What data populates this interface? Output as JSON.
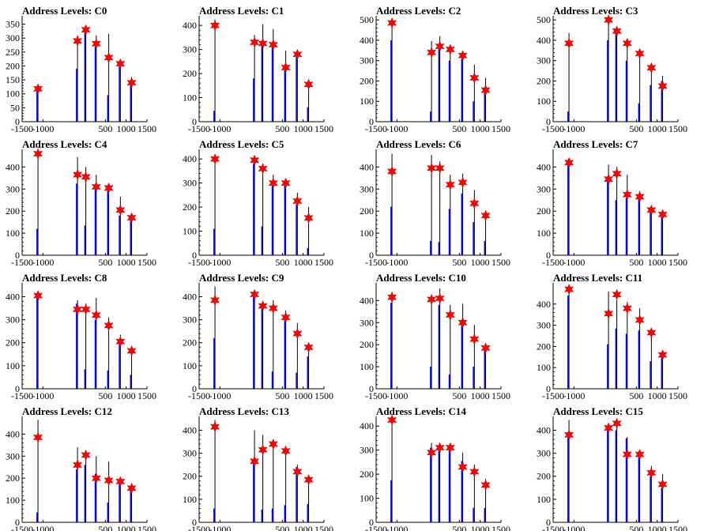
{
  "common": {
    "x_tick_labels": [
      "-1500",
      "-1000",
      "500",
      "1000",
      "1500"
    ],
    "xlim": [
      -1500,
      1500
    ]
  },
  "colors": {
    "background": "#ffffff",
    "axis": "#000000",
    "black_spike": "#000000",
    "blue_spike": "#0000ff",
    "marker": "#ff0000"
  },
  "chart_data": [
    {
      "type": "bar",
      "title": "Address Levels: C0",
      "ylim": [
        0,
        380
      ],
      "yticks": [
        0,
        50,
        100,
        150,
        200,
        250,
        300,
        350
      ],
      "groups": [
        {
          "x": -1100,
          "black": 125,
          "blue": 120,
          "marker": 118
        },
        {
          "x": -150,
          "black": 310,
          "blue": 190,
          "marker": 290
        },
        {
          "x": 50,
          "black": 335,
          "blue": 330,
          "marker": 330
        },
        {
          "x": 300,
          "black": 310,
          "blue": 270,
          "marker": 280
        },
        {
          "x": 600,
          "black": 315,
          "blue": 95,
          "marker": 230
        },
        {
          "x": 880,
          "black": 215,
          "blue": 200,
          "marker": 208
        },
        {
          "x": 1150,
          "black": 160,
          "blue": 140,
          "marker": 140
        }
      ]
    },
    {
      "type": "bar",
      "title": "Address Levels: C1",
      "ylim": [
        0,
        440
      ],
      "yticks": [
        0,
        100,
        200,
        300,
        400
      ],
      "groups": [
        {
          "x": -1100,
          "black": 425,
          "blue": 45,
          "marker": 400
        },
        {
          "x": -150,
          "black": 360,
          "blue": 180,
          "marker": 330
        },
        {
          "x": 50,
          "black": 405,
          "blue": 320,
          "marker": 325
        },
        {
          "x": 300,
          "black": 385,
          "blue": 315,
          "marker": 320
        },
        {
          "x": 600,
          "black": 295,
          "blue": 230,
          "marker": 225
        },
        {
          "x": 880,
          "black": 290,
          "blue": 270,
          "marker": 280
        },
        {
          "x": 1150,
          "black": 170,
          "blue": 60,
          "marker": 155
        }
      ]
    },
    {
      "type": "bar",
      "title": "Address Levels: C2",
      "ylim": [
        0,
        520
      ],
      "yticks": [
        0,
        100,
        200,
        300,
        400,
        500
      ],
      "groups": [
        {
          "x": -1100,
          "black": 500,
          "blue": 400,
          "marker": 485
        },
        {
          "x": -150,
          "black": 395,
          "blue": 50,
          "marker": 340
        },
        {
          "x": 50,
          "black": 420,
          "blue": 370,
          "marker": 370
        },
        {
          "x": 300,
          "black": 375,
          "blue": 300,
          "marker": 355
        },
        {
          "x": 600,
          "black": 335,
          "blue": 310,
          "marker": 325
        },
        {
          "x": 880,
          "black": 280,
          "blue": 100,
          "marker": 215
        },
        {
          "x": 1150,
          "black": 215,
          "blue": 150,
          "marker": 155
        }
      ]
    },
    {
      "type": "bar",
      "title": "Address Levels: C3",
      "ylim": [
        0,
        520
      ],
      "yticks": [
        0,
        100,
        200,
        300,
        400,
        500
      ],
      "groups": [
        {
          "x": -1100,
          "black": 435,
          "blue": 50,
          "marker": 385
        },
        {
          "x": -150,
          "black": 505,
          "blue": 400,
          "marker": 500
        },
        {
          "x": 50,
          "black": 455,
          "blue": 440,
          "marker": 445
        },
        {
          "x": 300,
          "black": 400,
          "blue": 300,
          "marker": 385
        },
        {
          "x": 600,
          "black": 345,
          "blue": 90,
          "marker": 335
        },
        {
          "x": 880,
          "black": 275,
          "blue": 180,
          "marker": 265
        },
        {
          "x": 1150,
          "black": 225,
          "blue": 200,
          "marker": 175
        }
      ]
    },
    {
      "type": "bar",
      "title": "Address Levels: C4",
      "ylim": [
        0,
        480
      ],
      "yticks": [
        0,
        100,
        200,
        300,
        400
      ],
      "groups": [
        {
          "x": -1100,
          "black": 460,
          "blue": 120,
          "marker": 460
        },
        {
          "x": -150,
          "black": 445,
          "blue": 325,
          "marker": 365
        },
        {
          "x": 50,
          "black": 400,
          "blue": 135,
          "marker": 355
        },
        {
          "x": 300,
          "black": 365,
          "blue": 300,
          "marker": 310
        },
        {
          "x": 600,
          "black": 320,
          "blue": 300,
          "marker": 305
        },
        {
          "x": 880,
          "black": 265,
          "blue": 180,
          "marker": 205
        },
        {
          "x": 1150,
          "black": 185,
          "blue": 160,
          "marker": 170
        }
      ]
    },
    {
      "type": "bar",
      "title": "Address Levels: C5",
      "ylim": [
        0,
        440
      ],
      "yticks": [
        0,
        100,
        200,
        300,
        400
      ],
      "groups": [
        {
          "x": -1100,
          "black": 410,
          "blue": 110,
          "marker": 400
        },
        {
          "x": -150,
          "black": 410,
          "blue": 380,
          "marker": 395
        },
        {
          "x": 50,
          "black": 380,
          "blue": 120,
          "marker": 360
        },
        {
          "x": 300,
          "black": 335,
          "blue": 290,
          "marker": 300
        },
        {
          "x": 600,
          "black": 310,
          "blue": 295,
          "marker": 300
        },
        {
          "x": 880,
          "black": 260,
          "blue": 210,
          "marker": 225
        },
        {
          "x": 1150,
          "black": 200,
          "blue": 30,
          "marker": 155
        }
      ]
    },
    {
      "type": "bar",
      "title": "Address Levels: C6",
      "ylim": [
        0,
        480
      ],
      "yticks": [
        0,
        100,
        200,
        300,
        400
      ],
      "groups": [
        {
          "x": -1100,
          "black": 460,
          "blue": 220,
          "marker": 380
        },
        {
          "x": -150,
          "black": 455,
          "blue": 65,
          "marker": 395
        },
        {
          "x": 50,
          "black": 425,
          "blue": 60,
          "marker": 395
        },
        {
          "x": 300,
          "black": 365,
          "blue": 210,
          "marker": 320
        },
        {
          "x": 600,
          "black": 370,
          "blue": 280,
          "marker": 330
        },
        {
          "x": 880,
          "black": 295,
          "blue": 150,
          "marker": 235
        },
        {
          "x": 1150,
          "black": 200,
          "blue": 65,
          "marker": 180
        }
      ]
    },
    {
      "type": "bar",
      "title": "Address Levels: C7",
      "ylim": [
        0,
        480
      ],
      "yticks": [
        0,
        100,
        200,
        300,
        400
      ],
      "groups": [
        {
          "x": -1100,
          "black": 440,
          "blue": 410,
          "marker": 420
        },
        {
          "x": -150,
          "black": 410,
          "blue": 340,
          "marker": 345
        },
        {
          "x": 50,
          "black": 400,
          "blue": 250,
          "marker": 370
        },
        {
          "x": 300,
          "black": 365,
          "blue": 260,
          "marker": 275
        },
        {
          "x": 600,
          "black": 290,
          "blue": 270,
          "marker": 265
        },
        {
          "x": 880,
          "black": 220,
          "blue": 200,
          "marker": 205
        },
        {
          "x": 1150,
          "black": 190,
          "blue": 180,
          "marker": 185
        }
      ]
    },
    {
      "type": "bar",
      "title": "Address Levels: C8",
      "ylim": [
        0,
        460
      ],
      "yticks": [
        0,
        100,
        200,
        300,
        400
      ],
      "groups": [
        {
          "x": -1100,
          "black": 420,
          "blue": 410,
          "marker": 405
        },
        {
          "x": -150,
          "black": 385,
          "blue": 370,
          "marker": 345
        },
        {
          "x": 50,
          "black": 370,
          "blue": 85,
          "marker": 345
        },
        {
          "x": 300,
          "black": 395,
          "blue": 300,
          "marker": 320
        },
        {
          "x": 600,
          "black": 310,
          "blue": 80,
          "marker": 275
        },
        {
          "x": 880,
          "black": 235,
          "blue": 210,
          "marker": 205
        },
        {
          "x": 1150,
          "black": 180,
          "blue": 60,
          "marker": 165
        }
      ]
    },
    {
      "type": "bar",
      "title": "Address Levels: C9",
      "ylim": [
        0,
        460
      ],
      "yticks": [
        0,
        100,
        200,
        300,
        400
      ],
      "groups": [
        {
          "x": -1100,
          "black": 445,
          "blue": 220,
          "marker": 385
        },
        {
          "x": -150,
          "black": 420,
          "blue": 400,
          "marker": 410
        },
        {
          "x": 50,
          "black": 380,
          "blue": 370,
          "marker": 360
        },
        {
          "x": 300,
          "black": 385,
          "blue": 75,
          "marker": 350
        },
        {
          "x": 600,
          "black": 340,
          "blue": 300,
          "marker": 310
        },
        {
          "x": 880,
          "black": 285,
          "blue": 70,
          "marker": 240
        },
        {
          "x": 1150,
          "black": 195,
          "blue": 140,
          "marker": 180
        }
      ]
    },
    {
      "type": "bar",
      "title": "Address Levels: C10",
      "ylim": [
        0,
        480
      ],
      "yticks": [
        0,
        100,
        200,
        300,
        400
      ],
      "groups": [
        {
          "x": -1100,
          "black": 440,
          "blue": 390,
          "marker": 415
        },
        {
          "x": -150,
          "black": 410,
          "blue": 100,
          "marker": 405
        },
        {
          "x": 50,
          "black": 455,
          "blue": 380,
          "marker": 410
        },
        {
          "x": 300,
          "black": 380,
          "blue": 65,
          "marker": 335
        },
        {
          "x": 600,
          "black": 385,
          "blue": 310,
          "marker": 300
        },
        {
          "x": 880,
          "black": 290,
          "blue": 100,
          "marker": 225
        },
        {
          "x": 1150,
          "black": 190,
          "blue": 180,
          "marker": 185
        }
      ]
    },
    {
      "type": "bar",
      "title": "Address Levels: C11",
      "ylim": [
        0,
        500
      ],
      "yticks": [
        0,
        100,
        200,
        300,
        400
      ],
      "groups": [
        {
          "x": -1100,
          "black": 475,
          "blue": 440,
          "marker": 470
        },
        {
          "x": -150,
          "black": 460,
          "blue": 210,
          "marker": 355
        },
        {
          "x": 50,
          "black": 420,
          "blue": 285,
          "marker": 445
        },
        {
          "x": 300,
          "black": 410,
          "blue": 260,
          "marker": 380
        },
        {
          "x": 600,
          "black": 380,
          "blue": 275,
          "marker": 325
        },
        {
          "x": 880,
          "black": 250,
          "blue": 130,
          "marker": 265
        },
        {
          "x": 1150,
          "black": 175,
          "blue": 160,
          "marker": 160
        }
      ]
    },
    {
      "type": "bar",
      "title": "Address Levels: C12",
      "ylim": [
        0,
        480
      ],
      "yticks": [
        0,
        100,
        200,
        300,
        400
      ],
      "groups": [
        {
          "x": -1100,
          "black": 465,
          "blue": 45,
          "marker": 385
        },
        {
          "x": -150,
          "black": 340,
          "blue": 240,
          "marker": 260
        },
        {
          "x": 50,
          "black": 300,
          "blue": 260,
          "marker": 305
        },
        {
          "x": 300,
          "black": 300,
          "blue": 220,
          "marker": 200
        },
        {
          "x": 600,
          "black": 275,
          "blue": 90,
          "marker": 190
        },
        {
          "x": 880,
          "black": 200,
          "blue": 190,
          "marker": 185
        },
        {
          "x": 1150,
          "black": 170,
          "blue": 160,
          "marker": 155
        }
      ]
    },
    {
      "type": "bar",
      "title": "Address Levels: C13",
      "ylim": [
        0,
        460
      ],
      "yticks": [
        0,
        100,
        200,
        300,
        400
      ],
      "groups": [
        {
          "x": -1100,
          "black": 445,
          "blue": 60,
          "marker": 415
        },
        {
          "x": -150,
          "black": 400,
          "blue": 265,
          "marker": 265
        },
        {
          "x": 50,
          "black": 380,
          "blue": 55,
          "marker": 315
        },
        {
          "x": 300,
          "black": 340,
          "blue": 60,
          "marker": 340
        },
        {
          "x": 600,
          "black": 310,
          "blue": 75,
          "marker": 310
        },
        {
          "x": 880,
          "black": 250,
          "blue": 240,
          "marker": 220
        },
        {
          "x": 1150,
          "black": 185,
          "blue": 80,
          "marker": 185
        }
      ]
    },
    {
      "type": "bar",
      "title": "Address Levels: C14",
      "ylim": [
        0,
        440
      ],
      "yticks": [
        0,
        100,
        200,
        300,
        400
      ],
      "groups": [
        {
          "x": -1100,
          "black": 430,
          "blue": 175,
          "marker": 425
        },
        {
          "x": -150,
          "black": 330,
          "blue": 310,
          "marker": 290
        },
        {
          "x": 50,
          "black": 325,
          "blue": 315,
          "marker": 310
        },
        {
          "x": 300,
          "black": 315,
          "blue": 300,
          "marker": 310
        },
        {
          "x": 600,
          "black": 290,
          "blue": 255,
          "marker": 230
        },
        {
          "x": 880,
          "black": 240,
          "blue": 60,
          "marker": 210
        },
        {
          "x": 1150,
          "black": 180,
          "blue": 60,
          "marker": 155
        }
      ]
    },
    {
      "type": "bar",
      "title": "Address Levels: C15",
      "ylim": [
        0,
        460
      ],
      "yticks": [
        0,
        100,
        200,
        300,
        400
      ],
      "groups": [
        {
          "x": -1100,
          "black": 445,
          "blue": 370,
          "marker": 380
        },
        {
          "x": -150,
          "black": 420,
          "blue": 410,
          "marker": 410
        },
        {
          "x": 50,
          "black": 415,
          "blue": 400,
          "marker": 430
        },
        {
          "x": 300,
          "black": 370,
          "blue": 365,
          "marker": 295
        },
        {
          "x": 600,
          "black": 300,
          "blue": 290,
          "marker": 295
        },
        {
          "x": 880,
          "black": 245,
          "blue": 200,
          "marker": 215
        },
        {
          "x": 1150,
          "black": 210,
          "blue": 150,
          "marker": 165
        }
      ]
    }
  ]
}
